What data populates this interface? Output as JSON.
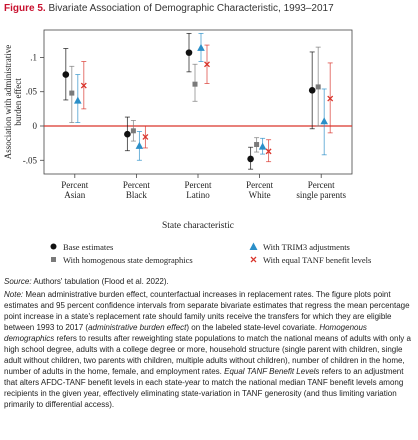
{
  "figure": {
    "label": "Figure 5.",
    "title": "Bivariate Association of Demographic Characteristic, 1993–2017"
  },
  "source": {
    "label": "Source:",
    "text": " Authors' tabulation (Flood et al. 2022)."
  },
  "note": {
    "label": "Note:",
    "parts": [
      " Mean administrative burden effect, counterfactual increases in replacement rates. The figure plots point estimates and 95 percent confidence intervals from separate bivariate estimates that regress the mean percentage point increase in a state's replacement rate should family units receive the transfers for which they are eligible between 1993 to 2017 (",
      "administrative burden effect",
      ") on the labeled state-level covariate. ",
      "Homogenous demographics",
      " refers to results after reweighting state populations to match the national means of adults with only a high school degree, adults with a college degree or more, household structure (single parent with children, single adult without children, two parents with children, multiple adults without children), number of children in the home, number of adults in the home, female, and employment rates. ",
      "Equal TANF Benefit Levels",
      " refers to an adjustment that alters AFDC-TANF benefit levels in each state-year to match the national median TANF benefit levels among recipients in the given year, effectively eliminating state-variation in TANF generosity (and thus limiting variation primarily to differential access)."
    ]
  },
  "legend": [
    {
      "label": "Base estimates",
      "marker": "circle",
      "color": "#111111"
    },
    {
      "label": "With homogenous state demographics",
      "marker": "square",
      "color": "#7a7a7a"
    },
    {
      "label": "With TRIM3 adjustments",
      "marker": "triangle",
      "color": "#2b8fc8"
    },
    {
      "label": "With equal TANF benefit levels",
      "marker": "x",
      "color": "#d9342b"
    }
  ],
  "chart_data": {
    "type": "scatter",
    "title": "",
    "xlabel": "State characteristic",
    "ylabel": "Association with administrative burden effect",
    "ylim": [
      -0.07,
      0.14
    ],
    "yticks": [
      -0.05,
      0,
      0.05,
      0.1
    ],
    "yticklabels": [
      "-.05",
      "0",
      ".05",
      ".1"
    ],
    "zero_line_color": "#d9342b",
    "grid": false,
    "legend_position": "bottom",
    "categories": [
      "Percent Asian",
      "Percent Black",
      "Percent Latino",
      "Percent White",
      "Percent single parents"
    ],
    "category_lines": [
      [
        "Percent",
        "Asian"
      ],
      [
        "Percent",
        "Black"
      ],
      [
        "Percent",
        "Latino"
      ],
      [
        "Percent",
        "White"
      ],
      [
        "Percent",
        "single parents"
      ]
    ],
    "series": [
      {
        "name": "Base estimates",
        "marker": "circle",
        "color": "#111111",
        "values": [
          0.075,
          -0.012,
          0.107,
          -0.048,
          0.052
        ],
        "ci": [
          [
            0.038,
            0.113
          ],
          [
            -0.036,
            0.013
          ],
          [
            0.079,
            0.135
          ],
          [
            -0.063,
            -0.031
          ],
          [
            -0.004,
            0.108
          ]
        ]
      },
      {
        "name": "With homogenous state demographics",
        "marker": "square",
        "color": "#7a7a7a",
        "values": [
          0.048,
          -0.007,
          0.061,
          -0.027,
          0.057
        ],
        "ci": [
          [
            0.005,
            0.087
          ],
          [
            -0.022,
            0.008
          ],
          [
            0.036,
            0.09
          ],
          [
            -0.038,
            -0.017
          ],
          [
            0.0,
            0.115
          ]
        ]
      },
      {
        "name": "With TRIM3 adjustments",
        "marker": "triangle",
        "color": "#2b8fc8",
        "values": [
          0.037,
          -0.029,
          0.114,
          -0.03,
          0.007
        ],
        "ci": [
          [
            0.005,
            0.075
          ],
          [
            -0.05,
            -0.008
          ],
          [
            0.094,
            0.135
          ],
          [
            -0.041,
            -0.018
          ],
          [
            -0.042,
            0.054
          ]
        ]
      },
      {
        "name": "With equal TANF benefit levels",
        "marker": "x",
        "color": "#d9342b",
        "values": [
          0.059,
          -0.016,
          0.09,
          -0.037,
          0.04
        ],
        "ci": [
          [
            0.025,
            0.094
          ],
          [
            -0.032,
            0.0
          ],
          [
            0.062,
            0.118
          ],
          [
            -0.052,
            -0.02
          ],
          [
            -0.01,
            0.092
          ]
        ]
      }
    ]
  }
}
